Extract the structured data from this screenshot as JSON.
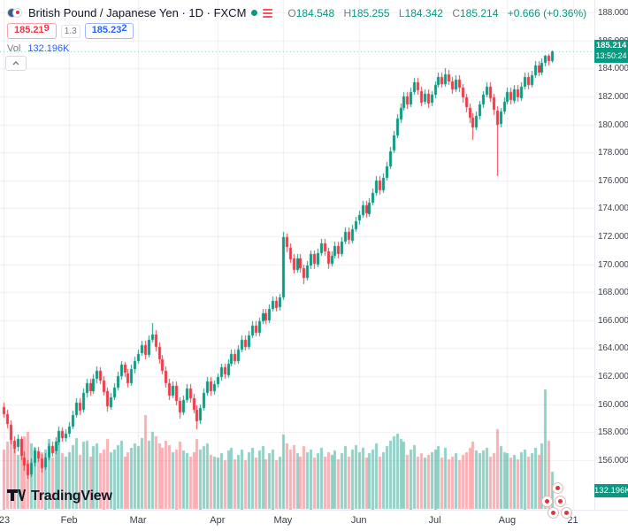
{
  "header": {
    "symbol_title": "British Pound / Japanese Yen · 1D · FXCM",
    "ohlc": {
      "o_label": "O",
      "o": "184.548",
      "h_label": "H",
      "h": "185.255",
      "l_label": "L",
      "l": "184.342",
      "c_label": "C",
      "c": "185.214",
      "change": "+0.666 (+0.36%)"
    },
    "sell": {
      "main": "185.21",
      "sup": "9",
      "full": "185.219"
    },
    "spread": "1.3",
    "buy": {
      "main": "185.23",
      "sup": "2",
      "full": "185.232"
    },
    "vol_label": "Vol",
    "vol_value": "132.196K"
  },
  "badges": {
    "price": "185.214",
    "countdown": "13:50:24",
    "volume": "132.196K"
  },
  "axes": {
    "price_labels": [
      "188.000",
      "186.000",
      "184.000",
      "182.000",
      "180.000",
      "178.000",
      "176.000",
      "174.000",
      "172.000",
      "170.000",
      "168.000",
      "166.000",
      "164.000",
      "162.000",
      "160.000",
      "158.000",
      "156.000",
      "154.000"
    ],
    "time_ticks": [
      {
        "label": "'23",
        "index": 0
      },
      {
        "label": "Feb",
        "index": 19
      },
      {
        "label": "Mar",
        "index": 39
      },
      {
        "label": "Apr",
        "index": 62
      },
      {
        "label": "May",
        "index": 81
      },
      {
        "label": "Jun",
        "index": 103
      },
      {
        "label": "Jul",
        "index": 125
      },
      {
        "label": "Aug",
        "index": 146
      },
      {
        "label": "21",
        "index": 165
      }
    ]
  },
  "footer": {
    "logo_text": "TradingView"
  },
  "icons": {
    "symbol_logo": "gbpjpy-flags-icon",
    "status_dot": "market-status-dot-icon",
    "list": "notes-list-icon",
    "collapse": "chevron-up-icon",
    "events": "japan-flag-event-icon",
    "tv": "tradingview-logo-icon"
  },
  "chart_data": {
    "type": "candlestick",
    "symbol": "GBP/JPY",
    "title": "British Pound / Japanese Yen",
    "timeframe": "1D",
    "exchange": "FXCM",
    "ohlc_current": {
      "open": 184.548,
      "high": 185.255,
      "low": 184.342,
      "close": 185.214,
      "change": 0.666,
      "change_pct": 0.36
    },
    "volume_current_k": 132.196,
    "price_axis_range": [
      154.2,
      188.45
    ],
    "grid": true,
    "month_start_indices": [
      0,
      19,
      39,
      62,
      81,
      103,
      125,
      146
    ],
    "colors": {
      "up": "#089981",
      "down": "#f23645",
      "vol_up": "rgba(8,153,129,0.45)",
      "vol_down": "rgba(242,54,69,0.40)",
      "grid": "rgba(120,130,150,0.13)",
      "price_line": "rgba(8,153,129,0.55)",
      "badge": "#089981"
    },
    "candles_legend": [
      "open",
      "high",
      "low",
      "close",
      "volume_k"
    ],
    "candles": [
      [
        159.8,
        160.1,
        159.0,
        159.3,
        210
      ],
      [
        159.3,
        159.6,
        158.3,
        158.6,
        235
      ],
      [
        158.5,
        158.8,
        157.1,
        157.4,
        260
      ],
      [
        157.4,
        157.7,
        156.5,
        156.8,
        225
      ],
      [
        156.9,
        157.8,
        156.6,
        157.5,
        190
      ],
      [
        157.5,
        157.7,
        156.0,
        156.3,
        240
      ],
      [
        156.2,
        156.6,
        155.2,
        155.6,
        255
      ],
      [
        155.7,
        156.0,
        154.7,
        154.9,
        270
      ],
      [
        155.0,
        156.1,
        154.8,
        155.8,
        230
      ],
      [
        155.8,
        156.9,
        155.5,
        156.7,
        215
      ],
      [
        156.6,
        156.9,
        155.8,
        156.1,
        185
      ],
      [
        156.1,
        156.4,
        155.1,
        155.4,
        200
      ],
      [
        155.5,
        156.5,
        155.3,
        156.2,
        210
      ],
      [
        156.2,
        157.2,
        156.0,
        157.0,
        245
      ],
      [
        157.0,
        157.3,
        156.2,
        156.5,
        180
      ],
      [
        156.6,
        157.6,
        156.4,
        157.3,
        200
      ],
      [
        157.3,
        158.4,
        157.1,
        158.1,
        230
      ],
      [
        158.1,
        158.3,
        157.3,
        157.6,
        195
      ],
      [
        157.6,
        158.2,
        157.3,
        157.9,
        185
      ],
      [
        157.9,
        158.7,
        157.6,
        158.4,
        200
      ],
      [
        158.4,
        159.5,
        158.2,
        159.2,
        225
      ],
      [
        159.2,
        160.4,
        159.0,
        160.1,
        250
      ],
      [
        160.1,
        160.4,
        159.2,
        159.5,
        190
      ],
      [
        159.6,
        161.1,
        159.4,
        160.8,
        235
      ],
      [
        160.8,
        161.8,
        160.5,
        161.5,
        240
      ],
      [
        161.5,
        161.8,
        160.6,
        160.9,
        185
      ],
      [
        160.9,
        162.1,
        160.7,
        161.8,
        220
      ],
      [
        161.8,
        162.7,
        161.5,
        162.4,
        230
      ],
      [
        162.4,
        162.6,
        161.4,
        161.7,
        195
      ],
      [
        161.7,
        162.0,
        160.6,
        160.9,
        210
      ],
      [
        160.9,
        161.2,
        159.5,
        159.8,
        245
      ],
      [
        159.8,
        160.8,
        159.6,
        160.5,
        200
      ],
      [
        160.5,
        161.5,
        160.3,
        161.2,
        210
      ],
      [
        161.2,
        162.3,
        161.0,
        162.0,
        225
      ],
      [
        162.0,
        163.1,
        161.8,
        162.8,
        240
      ],
      [
        162.8,
        163.0,
        161.9,
        162.2,
        185
      ],
      [
        162.2,
        162.5,
        161.2,
        161.5,
        200
      ],
      [
        161.5,
        162.8,
        161.3,
        162.5,
        215
      ],
      [
        162.5,
        163.4,
        162.2,
        163.1,
        230
      ],
      [
        163.1,
        163.9,
        162.9,
        163.6,
        220
      ],
      [
        163.6,
        164.5,
        163.4,
        164.2,
        250
      ],
      [
        164.2,
        164.5,
        163.2,
        163.5,
        330
      ],
      [
        163.5,
        164.9,
        163.3,
        164.6,
        240
      ],
      [
        164.6,
        165.8,
        164.4,
        165.0,
        270
      ],
      [
        165.0,
        165.3,
        163.8,
        164.1,
        255
      ],
      [
        164.1,
        164.4,
        162.9,
        163.2,
        230
      ],
      [
        163.2,
        163.5,
        162.1,
        162.4,
        215
      ],
      [
        162.4,
        162.7,
        161.2,
        161.5,
        240
      ],
      [
        161.5,
        161.8,
        160.3,
        160.6,
        225
      ],
      [
        160.6,
        161.6,
        160.4,
        161.3,
        200
      ],
      [
        161.3,
        161.6,
        159.9,
        160.2,
        210
      ],
      [
        160.2,
        160.5,
        159.0,
        159.4,
        235
      ],
      [
        159.4,
        160.6,
        159.2,
        160.3,
        205
      ],
      [
        160.3,
        161.4,
        160.1,
        161.1,
        195
      ],
      [
        161.1,
        161.4,
        160.1,
        160.4,
        185
      ],
      [
        160.4,
        160.7,
        159.3,
        159.6,
        200
      ],
      [
        159.6,
        159.9,
        158.2,
        158.8,
        245
      ],
      [
        158.8,
        160.0,
        158.6,
        159.7,
        210
      ],
      [
        159.7,
        161.1,
        159.5,
        160.8,
        220
      ],
      [
        160.8,
        161.9,
        160.6,
        161.6,
        230
      ],
      [
        161.6,
        161.9,
        160.6,
        160.9,
        190
      ],
      [
        160.9,
        161.7,
        160.7,
        161.4,
        185
      ],
      [
        161.4,
        162.2,
        161.2,
        161.9,
        180
      ],
      [
        161.9,
        162.9,
        161.7,
        162.6,
        195
      ],
      [
        162.6,
        162.9,
        161.8,
        162.1,
        170
      ],
      [
        162.1,
        163.2,
        161.9,
        162.9,
        205
      ],
      [
        162.9,
        163.9,
        162.7,
        163.6,
        215
      ],
      [
        163.6,
        163.9,
        162.8,
        163.1,
        175
      ],
      [
        163.1,
        164.2,
        162.9,
        163.9,
        190
      ],
      [
        163.9,
        164.9,
        163.7,
        164.6,
        210
      ],
      [
        164.6,
        164.9,
        163.8,
        164.1,
        170
      ],
      [
        164.1,
        165.2,
        163.9,
        164.9,
        200
      ],
      [
        164.9,
        165.9,
        164.7,
        165.6,
        215
      ],
      [
        165.6,
        165.9,
        164.8,
        165.1,
        180
      ],
      [
        165.1,
        166.2,
        164.9,
        165.9,
        205
      ],
      [
        165.9,
        166.8,
        165.7,
        166.5,
        220
      ],
      [
        166.5,
        166.8,
        165.7,
        166.0,
        175
      ],
      [
        166.0,
        167.1,
        165.8,
        166.8,
        195
      ],
      [
        166.8,
        167.7,
        166.6,
        167.4,
        210
      ],
      [
        167.4,
        167.7,
        166.6,
        166.9,
        170
      ],
      [
        166.9,
        167.9,
        166.7,
        167.6,
        185
      ],
      [
        167.6,
        172.3,
        167.4,
        171.9,
        260
      ],
      [
        171.9,
        172.2,
        170.9,
        171.2,
        230
      ],
      [
        171.2,
        171.5,
        170.1,
        170.4,
        210
      ],
      [
        170.4,
        170.7,
        169.3,
        169.6,
        225
      ],
      [
        169.6,
        170.7,
        169.4,
        170.4,
        195
      ],
      [
        170.4,
        170.7,
        169.4,
        169.7,
        185
      ],
      [
        169.7,
        170.0,
        168.6,
        169.0,
        220
      ],
      [
        169.0,
        170.2,
        168.8,
        169.9,
        200
      ],
      [
        169.9,
        171.0,
        169.7,
        170.7,
        210
      ],
      [
        170.7,
        171.0,
        169.7,
        170.0,
        180
      ],
      [
        170.0,
        171.1,
        169.8,
        170.8,
        195
      ],
      [
        170.8,
        171.8,
        170.6,
        171.5,
        215
      ],
      [
        171.5,
        171.8,
        170.6,
        170.9,
        185
      ],
      [
        170.9,
        171.2,
        169.7,
        170.0,
        200
      ],
      [
        170.0,
        170.9,
        169.8,
        170.6,
        190
      ],
      [
        170.6,
        171.6,
        170.4,
        171.3,
        205
      ],
      [
        171.3,
        171.6,
        170.4,
        170.7,
        175
      ],
      [
        170.7,
        171.9,
        170.5,
        171.6,
        195
      ],
      [
        171.6,
        172.6,
        171.4,
        172.3,
        220
      ],
      [
        172.3,
        172.6,
        171.4,
        171.7,
        185
      ],
      [
        171.7,
        172.8,
        171.5,
        172.5,
        210
      ],
      [
        172.5,
        173.4,
        172.3,
        173.1,
        225
      ],
      [
        173.1,
        173.8,
        172.8,
        173.5,
        200
      ],
      [
        173.5,
        174.5,
        173.3,
        174.2,
        215
      ],
      [
        174.2,
        174.5,
        173.3,
        173.6,
        180
      ],
      [
        173.6,
        174.7,
        173.4,
        174.4,
        195
      ],
      [
        174.4,
        175.4,
        174.2,
        175.1,
        210
      ],
      [
        175.1,
        176.3,
        174.9,
        176.0,
        230
      ],
      [
        176.0,
        176.3,
        175.0,
        175.3,
        185
      ],
      [
        175.3,
        176.5,
        175.1,
        176.2,
        200
      ],
      [
        176.2,
        177.3,
        176.0,
        177.0,
        220
      ],
      [
        177.0,
        178.4,
        176.8,
        178.1,
        240
      ],
      [
        178.1,
        179.5,
        177.9,
        179.2,
        255
      ],
      [
        179.2,
        180.7,
        179.0,
        180.4,
        265
      ],
      [
        180.4,
        181.5,
        180.1,
        181.2,
        245
      ],
      [
        181.2,
        182.3,
        181.0,
        182.0,
        235
      ],
      [
        182.0,
        182.3,
        181.1,
        181.4,
        190
      ],
      [
        181.4,
        182.6,
        181.2,
        182.3,
        210
      ],
      [
        182.3,
        183.3,
        182.1,
        183.0,
        225
      ],
      [
        183.0,
        183.3,
        182.1,
        182.4,
        185
      ],
      [
        182.4,
        182.7,
        181.3,
        181.6,
        195
      ],
      [
        181.6,
        182.5,
        181.4,
        182.2,
        180
      ],
      [
        182.2,
        182.5,
        181.2,
        181.5,
        190
      ],
      [
        181.5,
        182.4,
        181.3,
        182.1,
        200
      ],
      [
        182.1,
        183.1,
        181.9,
        182.8,
        210
      ],
      [
        182.8,
        183.7,
        182.6,
        183.4,
        220
      ],
      [
        183.4,
        183.7,
        182.6,
        182.9,
        180
      ],
      [
        182.9,
        184.0,
        182.7,
        183.6,
        215
      ],
      [
        183.6,
        183.9,
        182.8,
        183.1,
        175
      ],
      [
        183.1,
        183.4,
        182.2,
        182.5,
        185
      ],
      [
        182.5,
        183.5,
        182.3,
        183.2,
        195
      ],
      [
        183.2,
        183.5,
        182.3,
        182.6,
        170
      ],
      [
        182.6,
        182.9,
        181.6,
        181.9,
        190
      ],
      [
        181.9,
        182.2,
        180.9,
        181.2,
        200
      ],
      [
        181.2,
        181.5,
        180.1,
        180.5,
        215
      ],
      [
        180.5,
        180.8,
        178.9,
        179.8,
        235
      ],
      [
        179.8,
        180.9,
        179.6,
        180.6,
        205
      ],
      [
        180.6,
        181.7,
        180.4,
        181.4,
        195
      ],
      [
        181.4,
        182.4,
        181.2,
        182.1,
        205
      ],
      [
        182.1,
        183.0,
        181.9,
        182.7,
        215
      ],
      [
        182.7,
        183.0,
        181.6,
        181.9,
        185
      ],
      [
        181.9,
        182.2,
        180.7,
        181.0,
        195
      ],
      [
        181.0,
        181.3,
        176.3,
        180.0,
        280
      ],
      [
        180.0,
        181.2,
        179.8,
        180.9,
        220
      ],
      [
        180.9,
        181.9,
        180.7,
        181.6,
        200
      ],
      [
        181.6,
        182.6,
        181.4,
        182.3,
        195
      ],
      [
        182.3,
        182.6,
        181.4,
        181.7,
        180
      ],
      [
        181.7,
        182.8,
        181.5,
        182.5,
        190
      ],
      [
        182.5,
        182.8,
        181.6,
        181.9,
        175
      ],
      [
        181.9,
        183.0,
        181.7,
        182.7,
        200
      ],
      [
        182.7,
        183.7,
        182.5,
        183.4,
        210
      ],
      [
        183.4,
        183.7,
        182.5,
        182.8,
        185
      ],
      [
        182.8,
        183.8,
        182.6,
        183.5,
        195
      ],
      [
        183.5,
        184.5,
        183.3,
        184.2,
        215
      ],
      [
        184.2,
        184.5,
        183.4,
        183.7,
        190
      ],
      [
        183.7,
        184.7,
        183.5,
        184.4,
        230
      ],
      [
        184.4,
        185.0,
        184.2,
        184.9,
        420
      ],
      [
        184.9,
        185.05,
        184.25,
        184.55,
        240
      ],
      [
        184.548,
        185.255,
        184.342,
        185.214,
        132.196
      ]
    ]
  }
}
